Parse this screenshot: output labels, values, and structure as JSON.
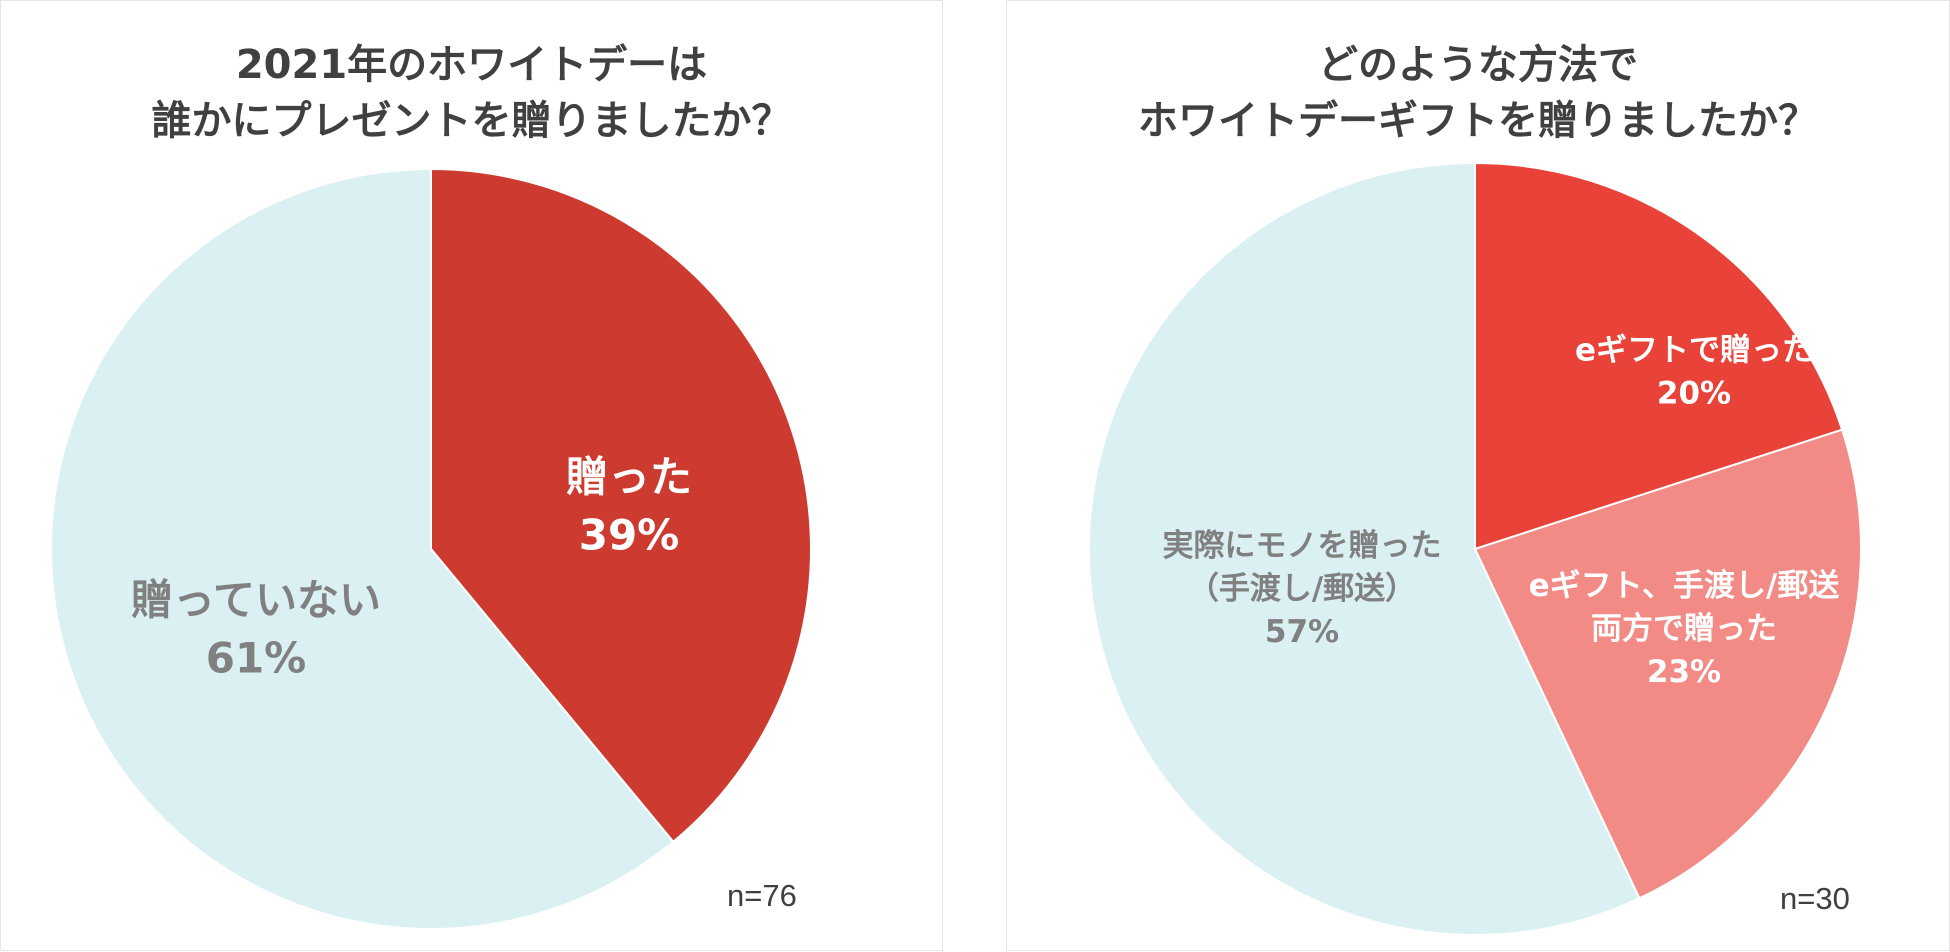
{
  "colors": {
    "dark_red": "#cd3a2f",
    "red": "#e84239",
    "pink": "#f28b85",
    "light_blue": "#daf0f3",
    "gray_text": "#808080",
    "white_text": "#ffffff",
    "title_text": "#404040"
  },
  "chart_data": [
    {
      "type": "pie",
      "title_lines": [
        "2021年のホワイトデーは",
        "誰かにプレゼントを贈りましたか？"
      ],
      "sample_size": "n=76",
      "slices": [
        {
          "label_lines": [
            "贈った"
          ],
          "value": 39,
          "value_label": "39%",
          "color": "#cd3a2f",
          "label_color": "#ffffff"
        },
        {
          "label_lines": [
            "贈っていない"
          ],
          "value": 61,
          "value_label": "61%",
          "color": "#daf0f3",
          "label_color": "#808080"
        }
      ]
    },
    {
      "type": "pie",
      "title_lines": [
        "どのような方法で",
        "ホワイトデーギフトを贈りましたか？"
      ],
      "sample_size": "n=30",
      "slices": [
        {
          "label_lines": [
            "eギフトで贈った"
          ],
          "value": 20,
          "value_label": "20%",
          "color": "#e84239",
          "label_color": "#ffffff"
        },
        {
          "label_lines": [
            "eギフト、手渡し/郵送",
            "両方で贈った"
          ],
          "value": 23,
          "value_label": "23%",
          "color": "#f28b85",
          "label_color": "#ffffff"
        },
        {
          "label_lines": [
            "実際にモノを贈った",
            "（手渡し/郵送）"
          ],
          "value": 57,
          "value_label": "57%",
          "color": "#daf0f3",
          "label_color": "#808080"
        }
      ]
    }
  ]
}
